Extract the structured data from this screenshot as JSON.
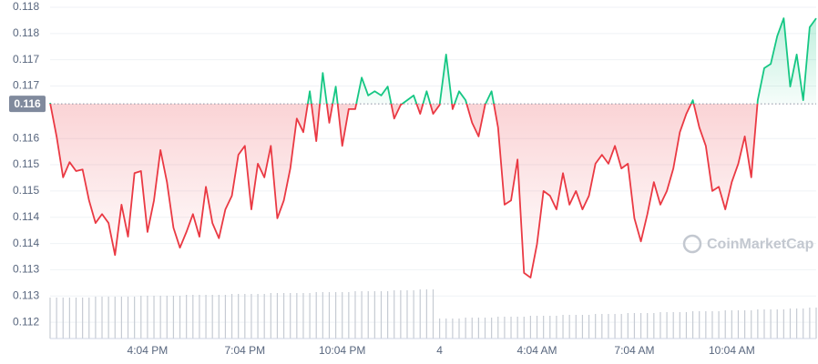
{
  "chart_data": {
    "type": "line",
    "categories": [
      null,
      null,
      null,
      null,
      null,
      null,
      null,
      null,
      null,
      null,
      null,
      null,
      null,
      null,
      null,
      "4:04 PM",
      null,
      null,
      null,
      null,
      null,
      null,
      null,
      null,
      null,
      null,
      null,
      null,
      null,
      null,
      "7:04 PM",
      null,
      null,
      null,
      null,
      null,
      null,
      null,
      null,
      null,
      null,
      null,
      null,
      null,
      null,
      "10:04 PM",
      null,
      null,
      null,
      null,
      null,
      null,
      null,
      null,
      null,
      null,
      null,
      null,
      null,
      null,
      "4",
      null,
      null,
      null,
      null,
      null,
      null,
      null,
      null,
      null,
      null,
      null,
      null,
      null,
      null,
      "4:04 AM",
      null,
      null,
      null,
      null,
      null,
      null,
      null,
      null,
      null,
      null,
      null,
      null,
      null,
      null,
      "7:04 AM",
      null,
      null,
      null,
      null,
      null,
      null,
      null,
      null,
      null,
      null,
      null,
      null,
      null,
      null,
      "10:04 AM",
      null,
      null,
      null,
      null,
      null,
      null,
      null,
      null,
      null,
      null,
      null,
      null,
      null
    ],
    "values": [
      0.11618,
      0.11554,
      0.11476,
      0.11505,
      0.11488,
      0.11491,
      0.11432,
      0.11389,
      0.11406,
      0.11389,
      0.11328,
      0.11424,
      0.11363,
      0.11484,
      0.11488,
      0.11372,
      0.11432,
      0.11528,
      0.11467,
      0.1138,
      0.11342,
      0.11372,
      0.11406,
      0.11363,
      0.11458,
      0.11389,
      0.1136,
      0.11415,
      0.11441,
      0.11519,
      0.11536,
      0.11415,
      0.11502,
      0.11476,
      0.11536,
      0.11398,
      0.11432,
      0.11493,
      0.11588,
      0.11562,
      0.1164,
      0.11545,
      0.11675,
      0.1158,
      0.11649,
      0.11536,
      0.11606,
      0.11606,
      0.11666,
      0.11632,
      0.1164,
      0.11632,
      0.11649,
      0.11588,
      0.11614,
      0.11623,
      0.11632,
      0.11597,
      0.1164,
      0.11597,
      0.11614,
      0.1171,
      0.11606,
      0.1164,
      0.11623,
      0.1158,
      0.11554,
      0.11614,
      0.1164,
      0.11571,
      0.11424,
      0.11432,
      0.1151,
      0.11294,
      0.11285,
      0.11349,
      0.1145,
      0.11441,
      0.11415,
      0.11484,
      0.11424,
      0.1145,
      0.11415,
      0.11441,
      0.11502,
      0.11519,
      0.11502,
      0.11536,
      0.11493,
      0.11502,
      0.11398,
      0.11354,
      0.11406,
      0.11467,
      0.11424,
      0.1145,
      0.11493,
      0.11562,
      0.11597,
      0.11623,
      0.11571,
      0.11536,
      0.1145,
      0.11458,
      0.11415,
      0.11467,
      0.11502,
      0.11554,
      0.11476,
      0.11623,
      0.11684,
      0.11692,
      0.11745,
      0.11779,
      0.11649,
      0.1171,
      0.11623,
      0.11762,
      0.11779
    ],
    "baseline": {
      "value": 0.11616,
      "label": "0.116"
    },
    "color_above": "#16c784",
    "color_below": "#ea3943",
    "ylim": [
      0.11169,
      0.118
    ],
    "yticks": [
      {
        "value": 0.118,
        "label": "0.118"
      },
      {
        "value": 0.1175,
        "label": "0.118"
      },
      {
        "value": 0.117,
        "label": "0.117"
      },
      {
        "value": 0.1165,
        "label": "0.117"
      },
      {
        "value": 0.1155,
        "label": "0.116"
      },
      {
        "value": 0.115,
        "label": "0.115"
      },
      {
        "value": 0.1145,
        "label": "0.115"
      },
      {
        "value": 0.114,
        "label": "0.114"
      },
      {
        "value": 0.1135,
        "label": "0.114"
      },
      {
        "value": 0.113,
        "label": "0.113"
      },
      {
        "value": 0.1125,
        "label": "0.113"
      },
      {
        "value": 0.112,
        "label": "0.112"
      }
    ],
    "grid": true,
    "volume": [
      45,
      45,
      45,
      45,
      45,
      45,
      45,
      46,
      46,
      46,
      46,
      46,
      46,
      46,
      47,
      47,
      47,
      47,
      47,
      47,
      47,
      48,
      48,
      48,
      48,
      48,
      48,
      48,
      49,
      49,
      49,
      49,
      49,
      49,
      50,
      50,
      50,
      50,
      50,
      50,
      50,
      51,
      51,
      51,
      51,
      51,
      51,
      52,
      52,
      52,
      52,
      52,
      52,
      53,
      53,
      53,
      53,
      54,
      54,
      54,
      22,
      22,
      22,
      22,
      23,
      23,
      23,
      23,
      23,
      24,
      24,
      24,
      24,
      24,
      25,
      25,
      25,
      25,
      25,
      26,
      26,
      26,
      26,
      26,
      27,
      27,
      27,
      27,
      27,
      28,
      28,
      28,
      28,
      28,
      29,
      29,
      29,
      29,
      29,
      30,
      30,
      30,
      30,
      30,
      31,
      31,
      31,
      31,
      31,
      32,
      32,
      32,
      32,
      32,
      33,
      33,
      33,
      34,
      34
    ],
    "volume_color": "#c6cbd3",
    "watermark": "CoinMarketCap"
  }
}
